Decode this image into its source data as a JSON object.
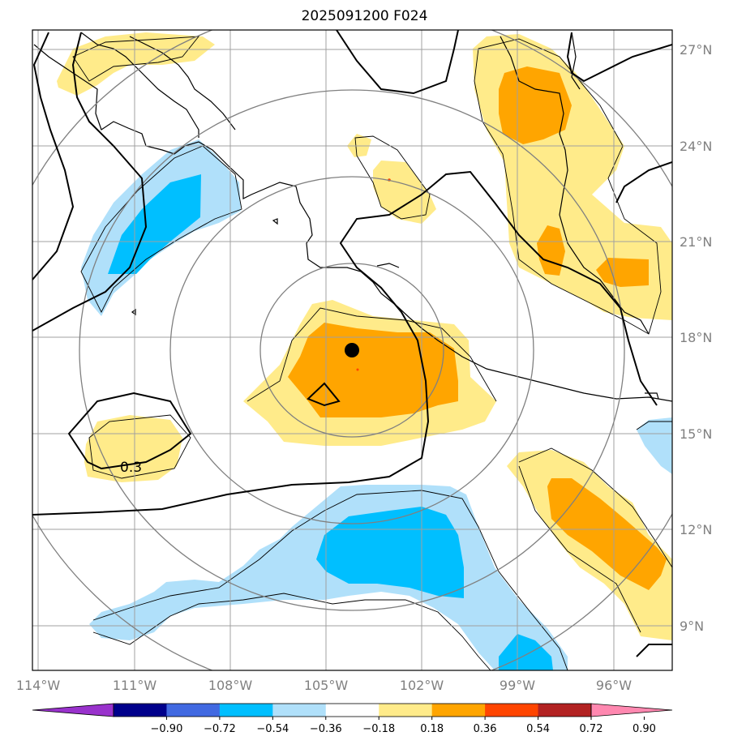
{
  "title": "2025091200 F024",
  "axes": {
    "lat_ticks": [
      "27°N",
      "24°N",
      "21°N",
      "18°N",
      "15°N",
      "12°N",
      "9°N"
    ],
    "lon_ticks": [
      "114°W",
      "111°W",
      "108°W",
      "105°W",
      "102°W",
      "99°W",
      "96°W"
    ]
  },
  "contour_label": "0.3",
  "colorbar": {
    "labels": [
      "−0.90",
      "−0.72",
      "−0.54",
      "−0.36",
      "−0.18",
      "0.18",
      "0.36",
      "0.54",
      "0.72",
      "0.90"
    ],
    "colors": [
      "#9932cc",
      "#00008b",
      "#4169e1",
      "#00bfff",
      "#b0e0fa",
      "#ffffff",
      "#ffeb8a",
      "#ffa500",
      "#ff4500",
      "#b22222",
      "#ff88b0"
    ]
  },
  "map_colors": {
    "light_yellow": "#ffeb8a",
    "orange": "#ffa500",
    "light_blue": "#b0e0fa",
    "blue": "#00bfff",
    "grid": "#a0a0a0",
    "range_rings": "#808080",
    "contour": "#000000"
  }
}
